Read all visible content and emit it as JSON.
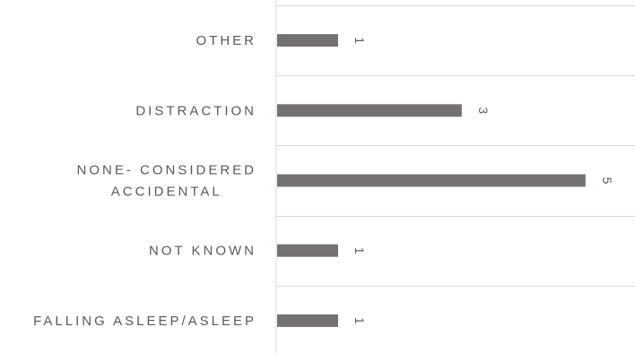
{
  "chart_data": {
    "type": "bar",
    "orientation": "horizontal",
    "categories": [
      "OTHER",
      "DISTRACTION",
      "NONE- CONSIDERED ACCIDENTAL",
      "NOT KNOWN",
      "FALLING ASLEEP/ASLEEP"
    ],
    "category_lines": [
      [
        "OTHER"
      ],
      [
        "DISTRACTION"
      ],
      [
        "NONE- CONSIDERED",
        "ACCIDENTAL"
      ],
      [
        "NOT KNOWN"
      ],
      [
        "FALLING ASLEEP/ASLEEP"
      ]
    ],
    "values": [
      1,
      3,
      5,
      1,
      1
    ],
    "data_labels": [
      "1",
      "3",
      "5",
      "1",
      "1"
    ],
    "xlim": [
      0,
      5.8
    ],
    "gridlines": true,
    "legend": "none",
    "colors": {
      "bar": "#767171",
      "grid": "#d9d9d9",
      "text": "#595959"
    }
  }
}
